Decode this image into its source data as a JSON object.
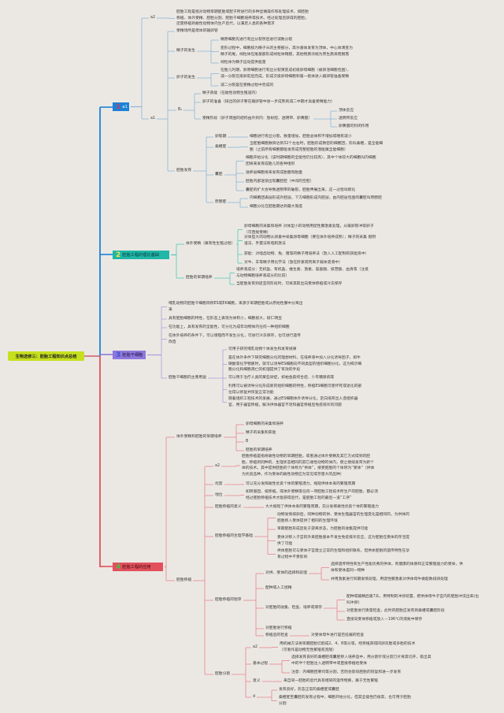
{
  "root_title": "生物选修三：胚胎工程知识点总结",
  "colors": {
    "root": "#c6e01e",
    "s1": "#1b82d8",
    "s2": "#20b7a6",
    "s3": "#8f77dc",
    "s4": "#e2505c",
    "background": "#ebe8e3"
  },
  "s1": {
    "num": "1",
    "label": "a1",
    "nodes": [
      "a2",
      "胚胎工程是指对动物早期胚胎或配子所进行的多种显微操作和处理技术，如胚胎\n移植、体外受精、胚胎分割、胚胎干细胞培养等技术。经过处理后获得的胚胎，\n还需移植到雌性动物体内生产后代，以满足人类的各种需求",
      "a1",
      "受精场所是母体的输卵管",
      "精子的发生",
      "精原细胞先进行有丝分裂然后进行减数分裂",
      "变形过程中，细胞核为精子头的主要部分，高尔基体发育为顶体，中心体演变为\n精子的尾，线粒体在尾基部形成线粒体鞘膜，其他物质浓缩为原生质滴而脱落",
      "线粒体为精子运动提供能量",
      "卵子的发生",
      "在胎儿时期，卵原细胞进行有丝分裂演变成初级卵母细胞（被卵泡细胞包围），\n减一分裂在排卵前后完成，形成次级卵母细胞和第一极体进入输卵管准备受精",
      "减二分裂是在受精过程中完成的",
      "B₁",
      "精子获能（在雌性动物生殖道内）",
      "卵子的准备（排出的卵子要在输卵管中进一步成熟到减二中期才具备受精能力）",
      "受精阶段（卵子周围的结构由外到内：放射冠、透明带、卵黄膜）",
      "顶体反应",
      "透明带反应",
      "卵黄膜的封闭作用",
      "胚胎发育",
      "卵裂期",
      "桑椹胚",
      "囊胚",
      "原肠胚",
      "细胞进行有丝分裂，数量增加，胚胎总体积不增加或略有减小",
      "当胚胎细胞数目达到32个左右时，胚胎形成致密的细胞团，形似桑椹，是全能细\n胞（之前所有细胞都能发育成完整胚胎的潜能属全能细胞）",
      "细胞开始分化（该时期细胞的全能性仍比较高），其中个体较大的细胞叫内细胞\n团将来发育成胎儿的各种组织",
      "滋养层细胞将来发育成胎膜和胎盘",
      "胚胎内部逐渐出现囊胚腔（中间的空腔）",
      "囊胚的扩大会导致透明带的破裂，胚胎伸展出来，这一过程叫孵化",
      "内细胞团表层形成外胚层，下方细胞形成内胚层，由内胚层包围的囊腔叫原肠腔",
      "细胞分化在胚胎期达到最大限度"
    ]
  },
  "s2": {
    "num": "2",
    "label": "胚胎工程的理论基础",
    "nodes": [
      "体外受精（属有性生殖过程）",
      "胚胎的早期培养",
      "卵母细胞的采集和培养 对体型小的动物用促性腺激素处理，从输卵管冲取卵子\n（可直接受精）",
      "对体型大的动物从卵巢中采集卵母细胞（要在体外培养成熟）；精子的采集 假阴\n道法、手握法和电刺激法",
      "获能：对啮齿动物、兔、猪等的精子用培养法（放入人工配制的获能液中）",
      "对牛、羊等精子用化学法（放在肝素或钙离子载体溶液中）",
      "培养液成分：无机盐、有机盐、维生素、激素、氨基酸、核苷酸、血清等（注意\n与动物细胞培养液成分的比较）",
      "当胚胎发育到适宜的阶段时，可将其取出向受体移植或冷冻保存"
    ]
  },
  "s3": {
    "num": "3",
    "label": "胚胎干细胞",
    "nodes": [
      "哺乳动物的胚胎干细胞简称ES或EK细胞，来源于早期胚胎或从原始性腺中分离出\n来",
      "具有胚胎细胞的特性，在形态上表现为体积小，细胞核大，核仁明显",
      "在功能上，具有发育的全能性，可分化为成年动物体内任何一种组织细胞",
      "在体外培养的条件下，可以增殖而不发生分化，可进行冷冻保存，也可进行遗传\n改造",
      "胚胎干细胞的主要用途",
      "可用于研究哺乳动物个体发生和发育规律",
      "是在体外条件下研究细胞分化的理想材料，在培养液中加入分化诱导因子，如牛\n磺酸等化学物质时，就可以诱导ES细胞向不同类型的组织细胞分化，这为揭示细\n胞分化和细胞凋亡的机理提供了有效的手段",
      "可以用于治疗人类的某些顽症，如帕金森综合症、少年糖尿病等",
      "利用可以被诱导分化形成新的组织细胞的特性，移植ES细胞可使坏死或退化的部\n位得以修复并恢复正常功能",
      "随着组织工程技术的发展，通过ES细胞体外诱导分化，定向培育出人造组织器\n官，用于器官移植，解决供体器官不足和器官移植后免疫排斥的问题"
    ]
  },
  "s4": {
    "num": "4",
    "label": "胚胎工程的应用",
    "nodes": [
      "体外受精和胚胎的早期培养",
      "卵母细胞的采集和培养",
      "精子的采集和获能",
      "B",
      "胚胎的早期培养",
      "胚胎移植",
      "a2",
      "胚胎移植是指将雌性动物的早期胚胎，或者通过体外受精及其它方式得到的胚\n胎，移植到同种的、生理状态相同的其它雌性动物的体内，使之继续发育为新个\n体的技术。其中提供胚胎的个体称为“供体”，接受胚胎的个体称为“受体”（供体\n为优良品种，作为受体的雌性动物应为常见或存量大的品种）",
      "优势",
      "可以充分发挥雌性优良个体的繁殖潜力，缩短供体本身的繁殖周期",
      "地位",
      "如转基因、核移植，或体外受精等任何一项胚胎工程技术所生产的胚胎，都必须\n经过胚胎移植技术才能获得后代，是胚胎工程的最后一道“工序”",
      "胚胎移植的意义",
      "大大缩短了供体本身的繁殖周期，充分发挥雌性优良个体的繁殖能力",
      "胚胎移植的生理学基础",
      "动物发情排卵后，同种动物的供、受体生殖器官的生理变化是相同的，为供体的\n胚胎移入受体提供了相同的生理环境",
      "早期胚胎形成后处于游离状态，为胚胎的收集提供可能",
      "受体对移入子宫的外来胚胎基本不发生免疫排斥反应，这为胚胎在受体的存活提\n供了可能",
      "供体胚胎可与受体子宫建立正常的生理和组织联系，但供体胚胎的遗传特性在孕\n育过程中不受影响",
      "胚胎移植的程序",
      "对供、受体的选择和处理",
      "配种或人工授精",
      "对胚胎的收集、检查、培养或保存",
      "对胚胎进行移植",
      "移植后的检查",
      "选择遗传特性和生产性能优秀的供体，有健康的体质和正常繁殖能力的受体，供\n体和受体是同一物种",
      "并用激素进行同期发情处理，用促性腺激素对供体母牛做超数排卵处理",
      "配种或输精后第7天，用特制的冲卵装置，把供体母牛子宫内的胚胎冲洗出来(也\n叫冲卵)",
      "对胚胎进行质量检查，此时的胚胎应发育到桑椹或囊胚阶段",
      "直接向受体移植或放入－196℃的液氮中保存",
      "对受体母牛进行是否妊娠的检查",
      "胚胎分割",
      "a2",
      "用机械方法将早期胚胎切割成2、4、8等分等，经移植获得同卵双胎或多胎的技术\n（可看作是动物无性繁殖或克隆）",
      "基本过程",
      "选择发育良好的桑椹胚或囊胚移入培养皿中，用分割针或分割刀片将其切开，吸出其\n中的半个胚胎注入透明带中或直接移植给受体",
      "注意：内细胞团要均等分割，否则会影响胚胎的恢复和进一步发育",
      "意义",
      "来自同一胚胎的后代具有相同的遗传物质，属于无性繁殖",
      "d",
      "发育良好，形态正常的桑椹胚或囊胚",
      "桑椹胚至囊胚的发育过程中，细胞开始分化，但其全能性仍很高，也可用于胚胎\n分割"
    ]
  }
}
